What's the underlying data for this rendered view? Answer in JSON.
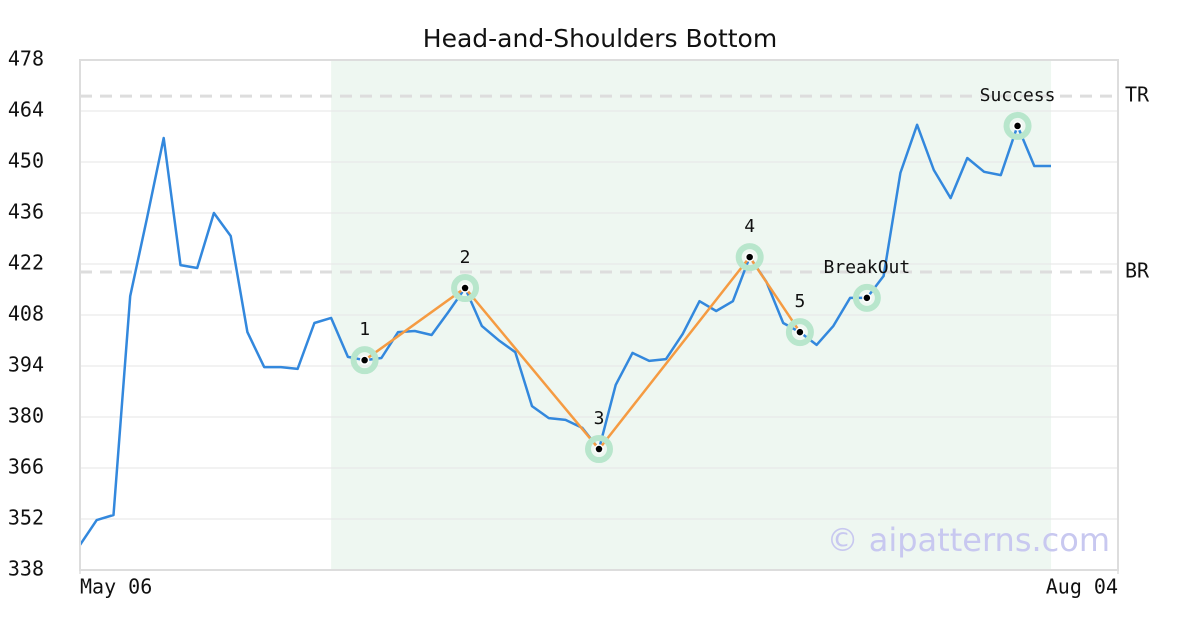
{
  "chart_data": {
    "type": "line",
    "title": "Head-and-Shoulders Bottom",
    "x": [
      0,
      1,
      2,
      3,
      4,
      5,
      6,
      7,
      8,
      9,
      10,
      11,
      12,
      13,
      14,
      15,
      16,
      17,
      18,
      19,
      20,
      21,
      22,
      23,
      24,
      25,
      26,
      27,
      28,
      29,
      30,
      31,
      32,
      33,
      34,
      35,
      36,
      37,
      38,
      39,
      40,
      41,
      42,
      43,
      44,
      45,
      46,
      47,
      48,
      49,
      50,
      51,
      52,
      53,
      54,
      55,
      56,
      57,
      58
    ],
    "values": [
      344.9,
      351.7,
      353.1,
      413.2,
      434.6,
      456.6,
      421.7,
      420.9,
      436.0,
      429.7,
      403.3,
      393.7,
      393.7,
      393.2,
      405.8,
      407.2,
      396.5,
      395.6,
      396.2,
      403.3,
      403.6,
      402.5,
      408.8,
      415.4,
      405.0,
      401.1,
      397.8,
      383.0,
      379.7,
      379.2,
      377.0,
      371.2,
      388.8,
      397.6,
      395.4,
      395.9,
      402.8,
      411.8,
      409.1,
      411.8,
      423.9,
      417.1,
      405.8,
      403.3,
      399.8,
      405.0,
      412.7,
      412.7,
      418.7,
      447.0,
      460.2,
      447.8,
      440.1,
      451.1,
      447.3,
      446.4,
      459.9,
      448.9,
      448.9
    ],
    "color": "#3388dd",
    "xlim": [
      0,
      62
    ],
    "xticks": [
      {
        "value": 0,
        "label": "May 06"
      },
      {
        "value": 62,
        "label": "Aug 04"
      }
    ],
    "ylim": [
      338,
      478
    ],
    "yticks": [
      338,
      352,
      366,
      380,
      394,
      408,
      422,
      436,
      450,
      464,
      478
    ],
    "grid": true,
    "shade": {
      "from": 15,
      "to": 58,
      "color": "#eef7f1"
    },
    "levels": [
      {
        "label": "TR",
        "value": 468.1
      },
      {
        "label": "BR",
        "value": 419.8
      }
    ],
    "pattern": {
      "color": "#f59b42",
      "points": [
        17,
        23,
        31,
        40,
        43
      ],
      "labels": [
        "1",
        "2",
        "3",
        "4",
        "5"
      ]
    },
    "annotations": [
      {
        "label": "BreakOut",
        "x": 47
      },
      {
        "label": "Success",
        "x": 56
      }
    ],
    "watermark": "© aipatterns.com"
  }
}
